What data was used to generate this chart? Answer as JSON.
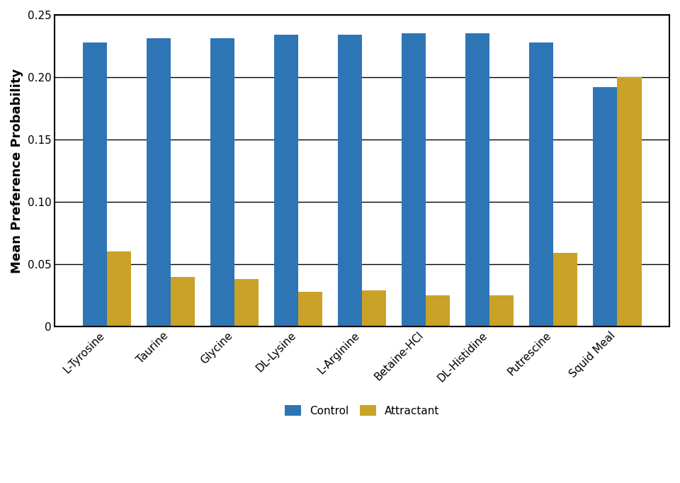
{
  "categories": [
    "L-Tyrosine",
    "Taurine",
    "Glycine",
    "DL-Lysine",
    "L-Arginine",
    "Betaine-HCl",
    "DL-Histidine",
    "Putrescine",
    "Squid Meal"
  ],
  "control_values": [
    0.228,
    0.231,
    0.231,
    0.234,
    0.234,
    0.235,
    0.235,
    0.228,
    0.192
  ],
  "attractant_values": [
    0.06,
    0.04,
    0.038,
    0.028,
    0.029,
    0.025,
    0.025,
    0.059,
    0.2
  ],
  "control_color": "#2E75B6",
  "attractant_color": "#C9A227",
  "ylabel": "Mean Preference Probability",
  "ylim": [
    0,
    0.25
  ],
  "yticks": [
    0,
    0.05,
    0.1,
    0.15,
    0.2,
    0.25
  ],
  "ytick_labels": [
    "0",
    "0.05",
    "0.10",
    "0.15",
    "0.20",
    "0.25"
  ],
  "legend_labels": [
    "Control",
    "Attractant"
  ],
  "bar_width": 0.38,
  "axis_fontsize": 13,
  "tick_fontsize": 11,
  "legend_fontsize": 11
}
